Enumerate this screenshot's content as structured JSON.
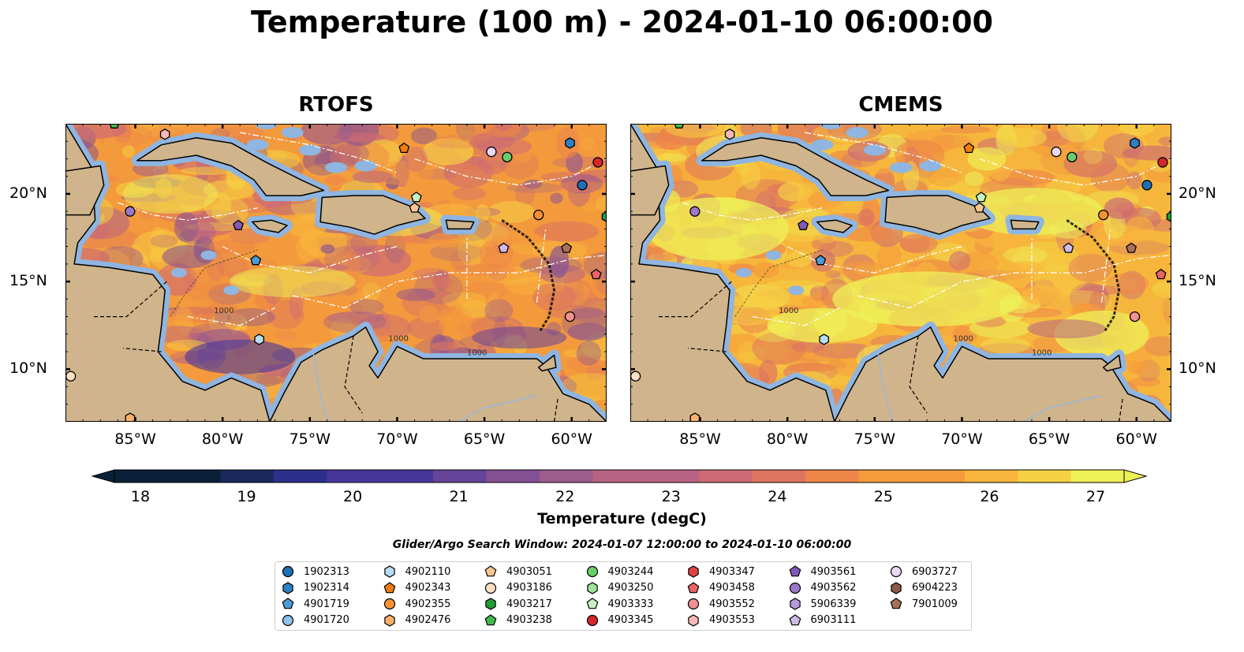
{
  "title": "Temperature (100 m) - 2024-01-10 06:00:00",
  "panels": [
    {
      "name": "RTOFS",
      "style": "warm"
    },
    {
      "name": "CMEMS",
      "style": "hot"
    }
  ],
  "map": {
    "x_ticks": [
      "85°W",
      "80°W",
      "75°W",
      "70°W",
      "65°W",
      "60°W"
    ],
    "y_ticks": [
      "20°N",
      "15°N",
      "10°N"
    ],
    "extent": {
      "lon": [
        -89,
        -58
      ],
      "lat": [
        7,
        24
      ]
    },
    "contour_labels": [
      "1000",
      "1000",
      "1000"
    ]
  },
  "colorbar": {
    "label": "Temperature (degC)",
    "ticks": [
      "18",
      "19",
      "20",
      "21",
      "22",
      "23",
      "24",
      "25",
      "26",
      "27"
    ],
    "range": [
      18,
      27
    ],
    "colors": [
      "#0a2038",
      "#1a2a5e",
      "#2d2f8c",
      "#48379a",
      "#66449a",
      "#845094",
      "#9e5c8c",
      "#b86383",
      "#cd6b74",
      "#dd755e",
      "#ee8549",
      "#f69b3c",
      "#f9b43c",
      "#f6d144",
      "#eef058"
    ]
  },
  "search_window": "Glider/Argo Search Window: 2024-01-07 12:00:00 to 2024-01-10 06:00:00",
  "legend": [
    {
      "id": "1902313",
      "marker": "circle",
      "color": "#1f6fb5"
    },
    {
      "id": "1902314",
      "marker": "hexagon",
      "color": "#2f7fc2"
    },
    {
      "id": "4901719",
      "marker": "pentagon",
      "color": "#4b9bd6"
    },
    {
      "id": "4901720",
      "marker": "circle",
      "color": "#8ec2ea"
    },
    {
      "id": "4902110",
      "marker": "hexagon",
      "color": "#b9dcf5"
    },
    {
      "id": "4902343",
      "marker": "pentagon",
      "color": "#f07d11"
    },
    {
      "id": "4902355",
      "marker": "circle",
      "color": "#f59233"
    },
    {
      "id": "4902476",
      "marker": "hexagon",
      "color": "#f9b06a"
    },
    {
      "id": "4903051",
      "marker": "pentagon",
      "color": "#fcc490"
    },
    {
      "id": "4903186",
      "marker": "circle",
      "color": "#fde0c4"
    },
    {
      "id": "4903217",
      "marker": "hexagon",
      "color": "#1e9e34"
    },
    {
      "id": "4903238",
      "marker": "pentagon",
      "color": "#43b84a"
    },
    {
      "id": "4903244",
      "marker": "circle",
      "color": "#6ccc6b"
    },
    {
      "id": "4903250",
      "marker": "hexagon",
      "color": "#9de39a"
    },
    {
      "id": "4903333",
      "marker": "pentagon",
      "color": "#c6f2c2"
    },
    {
      "id": "4903345",
      "marker": "circle",
      "color": "#d62728"
    },
    {
      "id": "4903347",
      "marker": "hexagon",
      "color": "#e04343"
    },
    {
      "id": "4903458",
      "marker": "pentagon",
      "color": "#ea6464"
    },
    {
      "id": "4903552",
      "marker": "circle",
      "color": "#f29191"
    },
    {
      "id": "4903553",
      "marker": "hexagon",
      "color": "#f8b8b8"
    },
    {
      "id": "4903561",
      "marker": "pentagon",
      "color": "#8359b8"
    },
    {
      "id": "4903562",
      "marker": "circle",
      "color": "#9b79c8"
    },
    {
      "id": "5906339",
      "marker": "hexagon",
      "color": "#b699d8"
    },
    {
      "id": "6903111",
      "marker": "pentagon",
      "color": "#cfbbe8"
    },
    {
      "id": "6903727",
      "marker": "circle",
      "color": "#ead9f5"
    },
    {
      "id": "6904223",
      "marker": "hexagon",
      "color": "#8c5a47"
    },
    {
      "id": "7901009",
      "marker": "pentagon",
      "color": "#a9705a"
    }
  ],
  "floats": [
    {
      "id": "1902314",
      "lon": -60.1,
      "lat": 22.9
    },
    {
      "id": "1902313",
      "lon": -59.4,
      "lat": 20.5
    },
    {
      "id": "4903345",
      "lon": -58.5,
      "lat": 21.8
    },
    {
      "id": "4903217",
      "lon": -58.0,
      "lat": 18.7
    },
    {
      "id": "4902343",
      "lon": -69.6,
      "lat": 22.6
    },
    {
      "id": "6903727",
      "lon": -64.6,
      "lat": 22.4
    },
    {
      "id": "4903244",
      "lon": -63.7,
      "lat": 22.1
    },
    {
      "id": "4903333",
      "lon": -68.9,
      "lat": 19.8
    },
    {
      "id": "4903051",
      "lon": -69.0,
      "lat": 19.2
    },
    {
      "id": "4902355",
      "lon": -61.9,
      "lat": 18.8
    },
    {
      "id": "6903111",
      "lon": -63.9,
      "lat": 16.9
    },
    {
      "id": "7901009",
      "lon": -60.3,
      "lat": 16.9
    },
    {
      "id": "4903458",
      "lon": -58.6,
      "lat": 15.4
    },
    {
      "id": "4903552",
      "lon": -60.1,
      "lat": 13.0
    },
    {
      "id": "4903562",
      "lon": -85.3,
      "lat": 19.0
    },
    {
      "id": "4903561",
      "lon": -79.1,
      "lat": 18.2
    },
    {
      "id": "4901719",
      "lon": -78.1,
      "lat": 16.2
    },
    {
      "id": "4902110",
      "lon": -77.9,
      "lat": 11.7
    },
    {
      "id": "4903186",
      "lon": -88.7,
      "lat": 9.6
    },
    {
      "id": "4902476",
      "lon": -85.3,
      "lat": 7.2
    },
    {
      "id": "4903553",
      "lon": -83.3,
      "lat": 23.4
    },
    {
      "id": "4903238",
      "lon": -86.2,
      "lat": 24.0
    }
  ]
}
